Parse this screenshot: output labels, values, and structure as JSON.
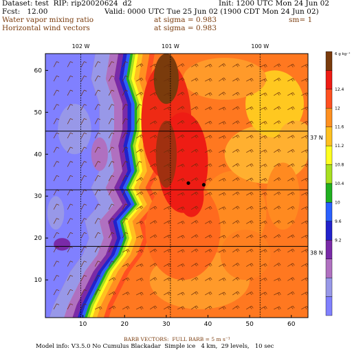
{
  "header": {
    "dataset": "Dataset: test  RIP: rip20020624  d2",
    "init": "Init: 1200 UTC Mon 24 Jun 02",
    "fcst": "Fcst:   12.00",
    "valid": "Valid: 0000 UTC Tue 25 Jun 02 (1900 CDT Mon 24 Jun 02)",
    "field1": "Water vapor mixing ratio",
    "sigma1": "at sigma = 0.983",
    "smooth": "sm= 1",
    "field2": "Horizontal wind vectors",
    "sigma2": "at sigma = 0.983"
  },
  "footer": {
    "barb_note": "BARB VECTORS:  FULL BARB = 5 m s⁻¹",
    "model_info": "Model info: V3.5.0 No Cumulus Blackadar  Simple ice   4 km,  29 levels,   10 sec"
  },
  "colors": {
    "scale": [
      "#8080ff",
      "#9898e8",
      "#b070c0",
      "#7a2aa8",
      "#2222cc",
      "#2a60ff",
      "#20b020",
      "#a8e020",
      "#ffff20",
      "#ffc020",
      "#ff9020",
      "#ff5020",
      "#ee1c14",
      "#7a3b0c"
    ]
  },
  "chart_data": {
    "type": "heatmap",
    "field": "water vapor mixing ratio",
    "x_ticks": [
      10,
      20,
      30,
      40,
      50,
      60
    ],
    "y_ticks": [
      10,
      20,
      30,
      40,
      50,
      60
    ],
    "xlim": [
      1,
      64
    ],
    "ylim": [
      1,
      64
    ],
    "top_labels": [
      "102 W",
      "101 W",
      "100 W"
    ],
    "right_labels": [
      "37 N",
      "38 N"
    ],
    "colorbar": {
      "unit": "g kg⁻¹",
      "labels": [
        "12.4",
        "12",
        "11.6",
        "11.2",
        "10.8",
        "10.4",
        "10",
        "9.6",
        "9.2"
      ]
    },
    "moisture_front_x": [
      [
        64,
        22
      ],
      [
        58,
        21
      ],
      [
        52,
        23
      ],
      [
        46,
        23
      ],
      [
        42,
        22
      ],
      [
        36,
        23
      ],
      [
        32,
        21
      ],
      [
        28,
        23
      ],
      [
        24,
        19.5
      ],
      [
        20,
        20.5
      ],
      [
        16,
        19
      ],
      [
        12,
        16
      ],
      [
        8,
        14
      ],
      [
        4,
        12
      ],
      [
        1,
        11
      ]
    ],
    "markers": [
      [
        35.3,
        33.1
      ],
      [
        39,
        32.7
      ]
    ],
    "lat_lines": [
      [
        1,
        45.5,
        64,
        45.5
      ],
      [
        1,
        31.5,
        64,
        31.5
      ],
      [
        1,
        18,
        64,
        18
      ]
    ],
    "lon_lines": [
      [
        9.5,
        1,
        9.5,
        64
      ],
      [
        31,
        1,
        31,
        64
      ],
      [
        52.5,
        1,
        52.5,
        64
      ]
    ]
  }
}
